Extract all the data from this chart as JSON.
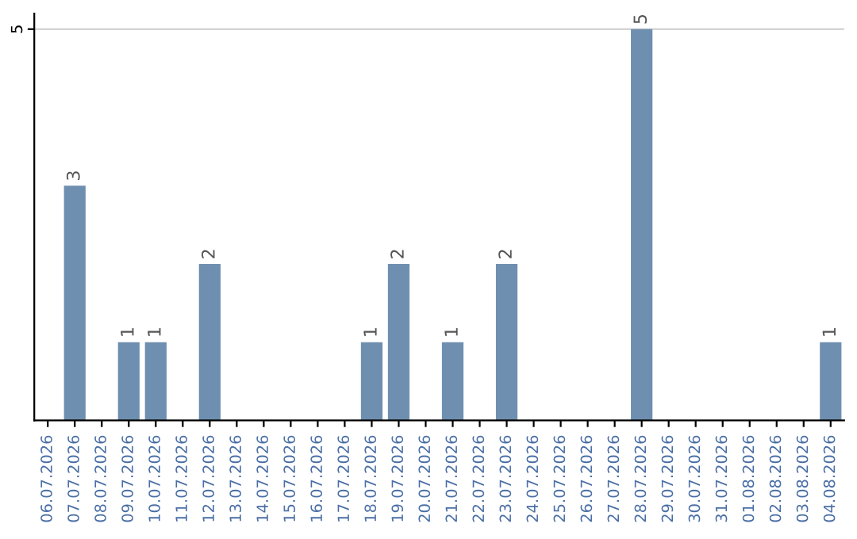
{
  "chart_data": {
    "type": "bar",
    "categories": [
      "06.07.2026",
      "07.07.2026",
      "08.07.2026",
      "09.07.2026",
      "10.07.2026",
      "11.07.2026",
      "12.07.2026",
      "13.07.2026",
      "14.07.2026",
      "15.07.2026",
      "16.07.2026",
      "17.07.2026",
      "18.07.2026",
      "19.07.2026",
      "20.07.2026",
      "21.07.2026",
      "22.07.2026",
      "23.07.2026",
      "24.07.2026",
      "25.07.2026",
      "26.07.2026",
      "27.07.2026",
      "28.07.2026",
      "29.07.2026",
      "30.07.2026",
      "31.07.2026",
      "01.08.2026",
      "02.08.2026",
      "03.08.2026",
      "04.08.2026"
    ],
    "values": [
      null,
      3,
      null,
      1,
      1,
      null,
      2,
      null,
      null,
      null,
      null,
      null,
      1,
      2,
      null,
      1,
      null,
      2,
      null,
      null,
      null,
      null,
      5,
      null,
      null,
      null,
      null,
      null,
      null,
      1
    ],
    "color": "#6e8fb0",
    "data_labels": true,
    "ylim": [
      0,
      5.2
    ],
    "yticks": [
      5
    ],
    "grid": "y"
  }
}
